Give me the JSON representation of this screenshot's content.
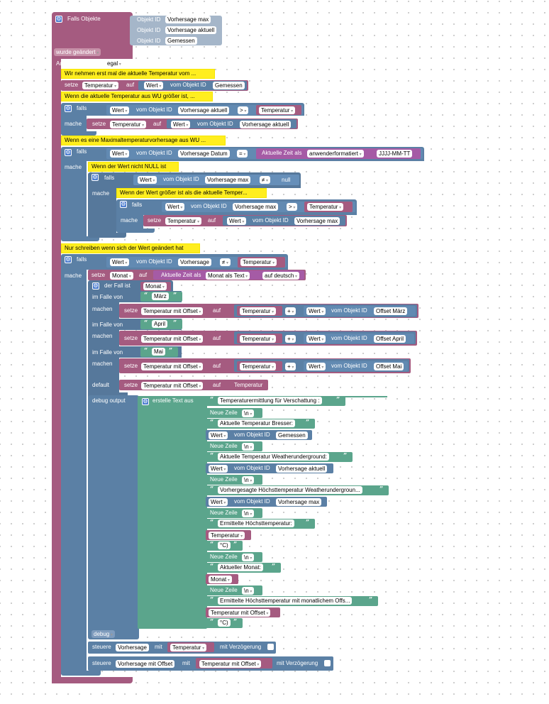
{
  "colors": {
    "event": "#a55b80",
    "logic": "#5b80a5",
    "variable": "#a55b80",
    "datetime": "#a55ba5",
    "text": "#5ba58c",
    "comment": "#ffee1f"
  },
  "trigger": {
    "label": "Falls Objekte",
    "obj_id_label": "Objekt ID",
    "objects": [
      "Vorhersage max",
      "Vorhersage aktuell",
      "Gemessen"
    ],
    "changed": "wurde geändert",
    "triggered_by": "Auslösung durch",
    "triggered_by_value": "egal"
  },
  "comments": {
    "c1": "Wir nehmen erst mal die aktuelle Temperatur vom ...",
    "c2": "Wenn die aktuelle Temperatur aus WU größer ist, ...",
    "c3": "Wenn es eine Maximaltemperaturvorhersage aus WU ...",
    "c4": "Wenn der Wert nicht NULL ist",
    "c5": "Wenn der Wert größer ist als die aktuelle Temper...",
    "c6": "Nur schreiben wenn sich der Wert geändert hat"
  },
  "kw": {
    "set": "setze",
    "to": "auf",
    "value": "Wert",
    "from_obj": "vom Objekt ID",
    "if": "falls",
    "do": "mache",
    "cur_time_as": "Aktuelle Zeit als",
    "user_fmt": "anwenderformatiert",
    "date_fmt": "JJJJ-MM-TT",
    "null": "null",
    "month_as_text": "Monat als Text",
    "in_german": "auf deutsch",
    "switch": "der Fall ist",
    "case": "im Falle von",
    "cases_do": "machen",
    "default": "default",
    "debug_output": "debug output",
    "create_text": "erstelle Text aus",
    "newline_label": "Neue Zeile",
    "newline_val": "\\n",
    "debug": "debug",
    "control": "steuere",
    "with": "mit",
    "delay": "mit Verzögerung"
  },
  "ops": {
    "gt": ">",
    "ne": "≠",
    "plus": "+",
    "eq": "="
  },
  "vars": {
    "temp": "Temperatur",
    "month": "Monat",
    "temp_offset": "Temperatur mit Offset"
  },
  "objects": {
    "gemessen": "Gemessen",
    "v_aktuell": "Vorhersage aktuell",
    "v_datum": "Vorhersage Datum",
    "v_max": "Vorhersage max",
    "vorhersage": "Vorhersage",
    "v_offset": "Vorhersage mit Offset",
    "off_maerz": "Offset März",
    "off_april": "Offset April",
    "off_mai": "Offset Mai"
  },
  "months": [
    "März",
    "April",
    "Mai"
  ],
  "strings": [
    "Temperaturermittlung für Verschattung :",
    "Aktuelle Temperatur Bresser:",
    "Aktuelle Temperatur Weatherunderground:",
    "Vorhergesagte Höchsttemperatur Weatherundergroun...",
    "Ermittelte Höchsttemperatur:",
    "°C)",
    "Aktueller Monat:",
    "Ermittelte Höchsttemperatur mit monatlichem Offs...",
    "°C)"
  ]
}
